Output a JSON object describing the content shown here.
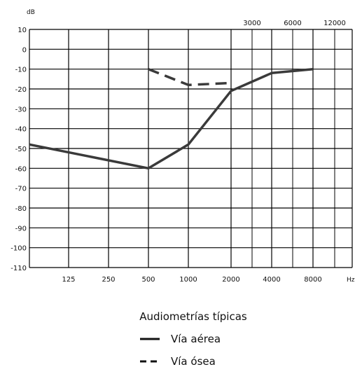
{
  "chart_data": {
    "type": "line",
    "ylabel": "dB",
    "xunit": "Hz",
    "ylim": [
      10,
      -110
    ],
    "yticks": [
      10,
      0,
      -10,
      -20,
      -30,
      -40,
      -50,
      -60,
      -70,
      -80,
      -90,
      -100,
      -110
    ],
    "yticks_text": [
      "10",
      "0",
      "-10",
      "-20",
      "-30",
      "-40",
      "-50",
      "-60",
      "-70",
      "-80",
      "-90",
      "-100",
      "-110"
    ],
    "x_bottom_ticks": [
      "125",
      "250",
      "500",
      "1000",
      "2000",
      "4000",
      "8000"
    ],
    "x_top_ticks": [
      "3000",
      "6000",
      "12000"
    ],
    "grid": true,
    "series": [
      {
        "name": "Vía aérea",
        "style": "solid",
        "x": [
          "100",
          "500",
          "1000",
          "2000",
          "4000",
          "8000"
        ],
        "values": [
          -48,
          -60,
          -48,
          -21,
          -12,
          -10
        ]
      },
      {
        "name": "Vía ósea",
        "style": "dashed",
        "x": [
          "500",
          "1000",
          "2000"
        ],
        "values": [
          -10,
          -18,
          -17
        ]
      }
    ],
    "legend": {
      "title": "Audiometrías típicas",
      "position": "bottom-center",
      "entries": [
        "Vía aérea",
        "Vía ósea"
      ]
    }
  },
  "colors": {
    "line": "#3a3a3a",
    "grid": "#000000",
    "background": "#ffffff"
  }
}
